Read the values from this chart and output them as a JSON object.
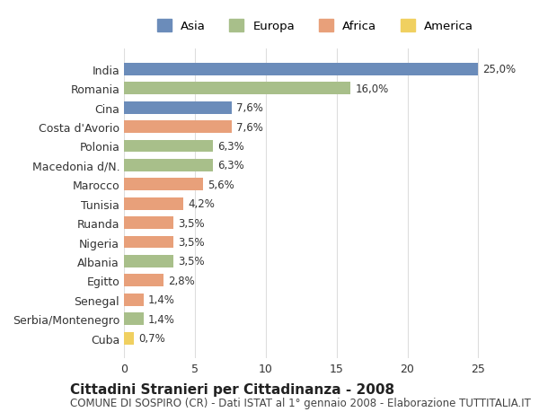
{
  "countries": [
    "India",
    "Romania",
    "Cina",
    "Costa d'Avorio",
    "Polonia",
    "Macedonia d/N.",
    "Marocco",
    "Tunisia",
    "Ruanda",
    "Nigeria",
    "Albania",
    "Egitto",
    "Senegal",
    "Serbia/Montenegro",
    "Cuba"
  ],
  "values": [
    25.0,
    16.0,
    7.6,
    7.6,
    6.3,
    6.3,
    5.6,
    4.2,
    3.5,
    3.5,
    3.5,
    2.8,
    1.4,
    1.4,
    0.7
  ],
  "labels": [
    "25,0%",
    "16,0%",
    "7,6%",
    "7,6%",
    "6,3%",
    "6,3%",
    "5,6%",
    "4,2%",
    "3,5%",
    "3,5%",
    "3,5%",
    "2,8%",
    "1,4%",
    "1,4%",
    "0,7%"
  ],
  "continents": [
    "Asia",
    "Europa",
    "Asia",
    "Africa",
    "Europa",
    "Europa",
    "Africa",
    "Africa",
    "Africa",
    "Africa",
    "Europa",
    "Africa",
    "Africa",
    "Europa",
    "America"
  ],
  "continent_colors": {
    "Asia": "#6b8cba",
    "Europa": "#a8bf8a",
    "Africa": "#e8a07a",
    "America": "#f0d060"
  },
  "legend_order": [
    "Asia",
    "Europa",
    "Africa",
    "America"
  ],
  "title": "Cittadini Stranieri per Cittadinanza - 2008",
  "subtitle": "COMUNE DI SOSPIRO (CR) - Dati ISTAT al 1° gennaio 2008 - Elaborazione TUTTITALIA.IT",
  "xlim": [
    0,
    27
  ],
  "xticks": [
    0,
    5,
    10,
    15,
    20,
    25
  ],
  "bar_background": "#ffffff",
  "grid_color": "#dddddd",
  "label_fontsize": 8.5,
  "title_fontsize": 11,
  "subtitle_fontsize": 8.5
}
